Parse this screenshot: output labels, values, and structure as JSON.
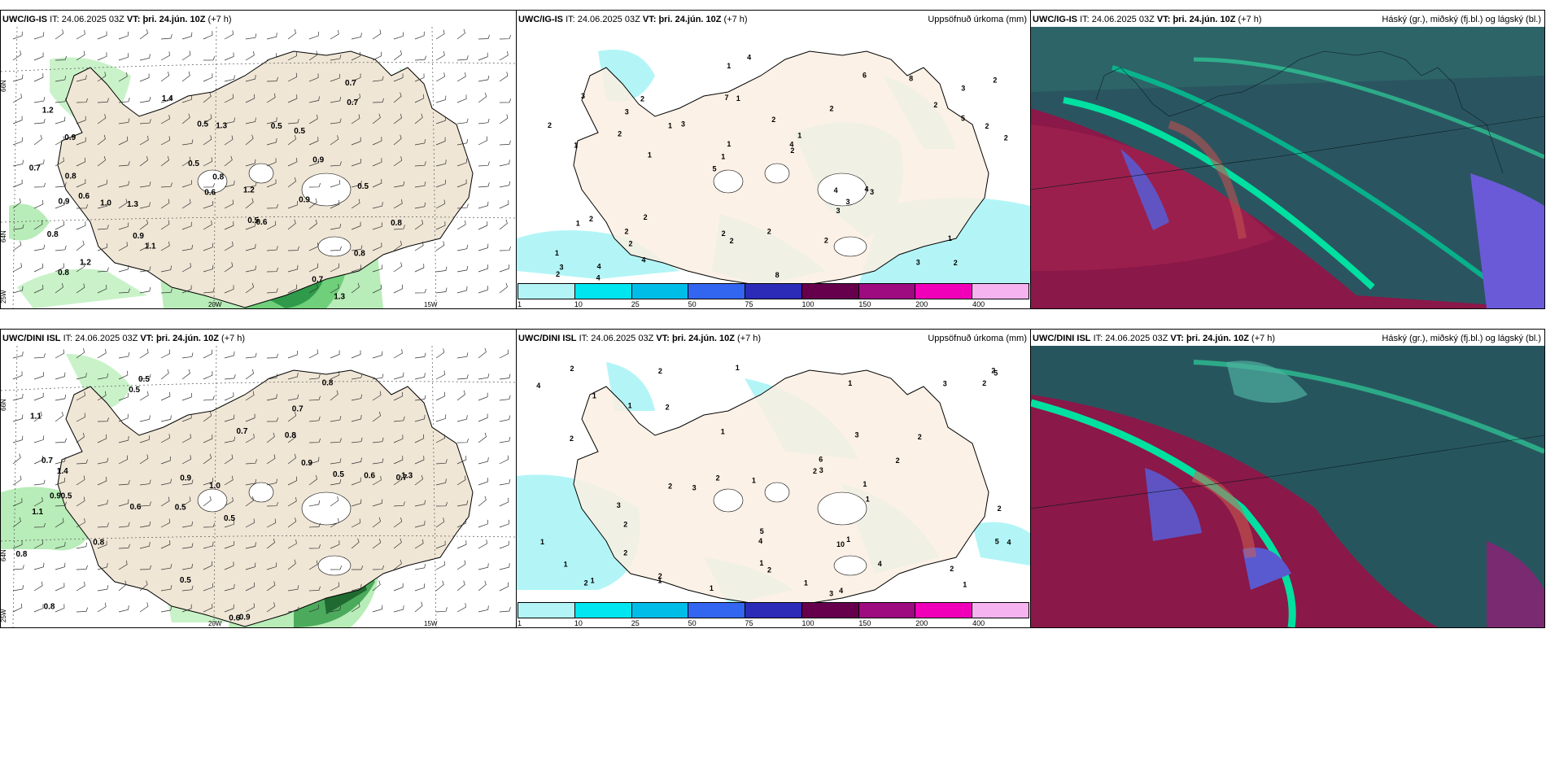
{
  "panels": [
    {
      "model": "UWC/IG-IS",
      "it_label": "IT:",
      "it": "24.06.2025 03Z",
      "vt_label": "VT:",
      "vt": "þri. 24.jún. 10Z",
      "lead": "(+7 h)",
      "right": ""
    },
    {
      "model": "UWC/IG-IS",
      "it_label": "IT:",
      "it": "24.06.2025 03Z",
      "vt_label": "VT:",
      "vt": "þri. 24.jún. 10Z",
      "lead": "(+7 h)",
      "right": "Uppsöfnuð úrkoma (mm)"
    },
    {
      "model": "UWC/IG-IS",
      "it_label": "IT:",
      "it": "24.06.2025 03Z",
      "vt_label": "VT:",
      "vt": "þri. 24.jún. 10Z",
      "lead": "(+7 h)",
      "right": "Háský (gr.), miðský (fj.bl.) og lágský (bl.)"
    },
    {
      "model": "UWC/DINI ISL",
      "it_label": "IT:",
      "it": "24.06.2025 03Z",
      "vt_label": "VT:",
      "vt": "þri. 24.jún. 10Z",
      "lead": "(+7 h)",
      "right": ""
    },
    {
      "model": "UWC/DINI ISL",
      "it_label": "IT:",
      "it": "24.06.2025 03Z",
      "vt_label": "VT:",
      "vt": "þri. 24.jún. 10Z",
      "lead": "(+7 h)",
      "right": "Uppsöfnuð úrkoma (mm)"
    },
    {
      "model": "UWC/DINI ISL",
      "it_label": "IT:",
      "it": "24.06.2025 03Z",
      "vt_label": "VT:",
      "vt": "þri. 24.jún. 10Z",
      "lead": "(+7 h)",
      "right": "Háský (gr.), miðský (fj.bl.) og lágský (bl.)"
    }
  ],
  "axis_labels": {
    "lat66": "66N",
    "lat64": "64N",
    "lon25": "25W",
    "lon20": "20W",
    "lon15": "15W"
  },
  "legend": {
    "colors": [
      "#b3f5f7",
      "#00e6f0",
      "#00bde8",
      "#3366f0",
      "#2b2bb8",
      "#66004d",
      "#9e0a80",
      "#f000b8",
      "#f5b3f0"
    ],
    "labels": [
      "1",
      "10",
      "25",
      "50",
      "75",
      "100",
      "150",
      "200",
      "400"
    ]
  },
  "precip_labels_top": [
    "2",
    "1",
    "3",
    "5",
    "2",
    "4",
    "7",
    "2",
    "2",
    "3",
    "1",
    "2",
    "1",
    "1",
    "3",
    "3",
    "1",
    "2",
    "4",
    "5",
    "1",
    "2",
    "1",
    "2",
    "6",
    "2",
    "3",
    "1",
    "4",
    "8",
    "1",
    "2",
    "3",
    "4",
    "2",
    "4",
    "3",
    "2",
    "2",
    "1",
    "2",
    "2",
    "3",
    "2",
    "2",
    "4",
    "2",
    "2",
    "8",
    "4",
    "1",
    "2",
    "3"
  ],
  "precip_labels_bottom": [
    "1",
    "3",
    "2",
    "4",
    "2",
    "1",
    "2",
    "1",
    "1",
    "1",
    "3",
    "2",
    "2",
    "4",
    "1",
    "2",
    "2",
    "1",
    "3",
    "4",
    "10",
    "5",
    "6",
    "2",
    "2",
    "3",
    "1",
    "2",
    "2",
    "1",
    "1",
    "4",
    "5",
    "2",
    "2",
    "1",
    "5",
    "1",
    "3",
    "2",
    "3",
    "2",
    "4",
    "1",
    "2",
    "1",
    "2",
    "1",
    "1",
    "1",
    "2"
  ],
  "wind_labels_top": [
    "1.3",
    "0.6",
    "0.5",
    "1.2",
    "0.8",
    "0.9",
    "1.2",
    "1.3",
    "0.5",
    "0.5",
    "0.5",
    "0.7",
    "1.1",
    "1.4",
    "1.2",
    "0.8",
    "0.9",
    "0.8",
    "0.7",
    "0.8",
    "0.7",
    "1.3",
    "0.9",
    "0.8",
    "0.5",
    "0.8",
    "1.0",
    "0.6",
    "0.5",
    "0.7",
    "0.6",
    "0.9",
    "0.9"
  ],
  "wind_labels_bottom": [
    "0.5",
    "0.7",
    "0.7",
    "0.5",
    "0.5",
    "0.5",
    "1.1",
    "0.8",
    "1.1",
    "0.7",
    "1.0",
    "0.8",
    "0.5",
    "0.6",
    "0.6",
    "0.9",
    "0.5",
    "0.8",
    "0.9",
    "0.8",
    "1.4",
    "0.9",
    "1.3",
    "0.6",
    "0.8",
    "0.7",
    "0.9",
    "0.5"
  ]
}
